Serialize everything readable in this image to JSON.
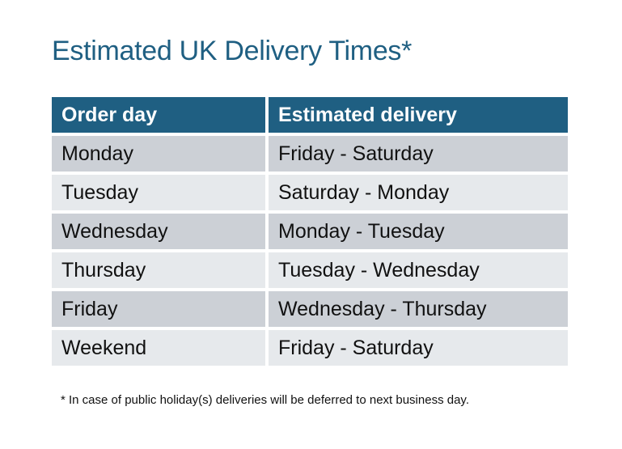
{
  "title": "Estimated UK Delivery Times*",
  "colors": {
    "header_bg": "#1f5f82",
    "row_dark": "#ccd0d6",
    "row_light": "#e6e9ec",
    "title": "#1f5f82"
  },
  "table": {
    "headers": [
      "Order day",
      "Estimated delivery"
    ],
    "rows": [
      [
        "Monday",
        "Friday - Saturday"
      ],
      [
        "Tuesday",
        "Saturday - Monday"
      ],
      [
        "Wednesday",
        "Monday - Tuesday"
      ],
      [
        "Thursday",
        "Tuesday - Wednesday"
      ],
      [
        "Friday",
        "Wednesday - Thursday"
      ],
      [
        "Weekend",
        "Friday - Saturday"
      ]
    ]
  },
  "footnote": "* In case of public holiday(s) deliveries will be deferred to next business day."
}
